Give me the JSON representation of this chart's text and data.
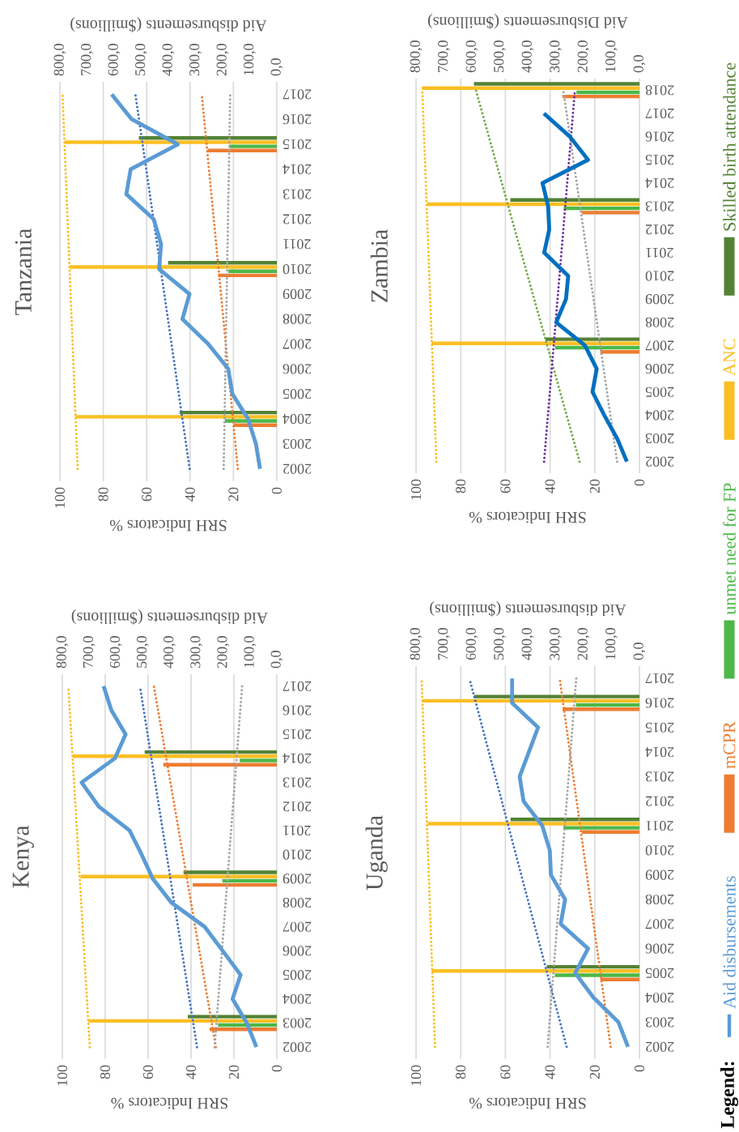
{
  "chart_data": [
    {
      "type": "bar",
      "orientation": "horizontal",
      "title": "Kenya",
      "xlabel": "SRH Indicators %",
      "x2label": "Aid disbursements ($millions)",
      "legend_title": "Legend:",
      "legend": "right",
      "grid": "x",
      "x": [
        2002,
        2003,
        2004,
        2005,
        2006,
        2007,
        2008,
        2009,
        2010,
        2011,
        2012,
        2013,
        2014,
        2015,
        2016,
        2017
      ],
      "ylim": [
        2001.5,
        2017.5
      ],
      "yticks": [
        2002,
        2003,
        2004,
        2005,
        2006,
        2007,
        2008,
        2009,
        2010,
        2011,
        2012,
        2013,
        2014,
        2015,
        2016,
        2017
      ],
      "xlim": [
        100,
        0
      ],
      "xticks": [
        0,
        20,
        40,
        60,
        80,
        100
      ],
      "x2lim": [
        800,
        0
      ],
      "x2ticks": [
        {
          "value": 0,
          "label": "0,0"
        },
        {
          "value": 100,
          "label": "100,0"
        },
        {
          "value": 200,
          "label": "200,0"
        },
        {
          "value": 300,
          "label": "300,0"
        },
        {
          "value": 400,
          "label": "400,0"
        },
        {
          "value": 500,
          "label": "500,0"
        },
        {
          "value": 600,
          "label": "600,0"
        },
        {
          "value": 700,
          "label": "700,0"
        },
        {
          "value": 800,
          "label": "800,0"
        }
      ],
      "series": [
        {
          "name": "Aid disbursements",
          "type": "line",
          "axis": "x2",
          "color": "#5b9bd5",
          "line_style": "solid",
          "values": [
            76,
            112,
            165,
            135,
            202,
            269,
            393,
            463,
            504,
            549,
            664,
            728,
            604,
            564,
            617,
            646
          ]
        },
        {
          "name": "mCPR",
          "color": "#ed7d31",
          "values": [
            null,
            31.3,
            null,
            null,
            null,
            null,
            null,
            39.2,
            null,
            null,
            null,
            null,
            52.9,
            null,
            null,
            null
          ]
        },
        {
          "name": "unmet need for FP",
          "color": "#4cb848",
          "values": [
            null,
            27.4,
            null,
            null,
            null,
            null,
            null,
            25.4,
            null,
            null,
            null,
            null,
            17.3,
            null,
            null,
            null
          ]
        },
        {
          "name": "ANC",
          "color": "#fbbf24",
          "values": [
            null,
            87.8,
            null,
            null,
            null,
            null,
            null,
            91.5,
            null,
            null,
            null,
            null,
            95.2,
            null,
            null,
            null
          ]
        },
        {
          "name": "Skilled birth attendance",
          "color": "#548235",
          "values": [
            null,
            41.5,
            null,
            null,
            null,
            null,
            null,
            43.5,
            null,
            null,
            null,
            null,
            61.6,
            null,
            null,
            null
          ]
        },
        {
          "type": "line",
          "color": "#fbbf24",
          "line_style": "dotted",
          "x": [
            2002,
            2017
          ],
          "values": [
            87.2,
            97.2
          ]
        },
        {
          "type": "line",
          "color": "#4472c4",
          "line_style": "dotted",
          "x": [
            2002,
            2017
          ],
          "values": [
            37.2,
            63.8
          ]
        },
        {
          "type": "line",
          "color": "#ed7d31",
          "line_style": "dotted",
          "x": [
            2002,
            2017
          ],
          "values": [
            28.4,
            57.3
          ]
        },
        {
          "type": "line",
          "color": "#a5a5a5",
          "line_style": "dotted",
          "x": [
            2002,
            2017
          ],
          "values": [
            29.0,
            16.2
          ]
        }
      ]
    },
    {
      "type": "bar",
      "orientation": "horizontal",
      "title": "Tanzania",
      "xlabel": "SRH Indicators %",
      "x2label": "Aid disbursements ($millions)",
      "grid": "x",
      "x": [
        2002,
        2003,
        2004,
        2005,
        2006,
        2007,
        2008,
        2009,
        2010,
        2011,
        2012,
        2013,
        2014,
        2015,
        2016,
        2017
      ],
      "ylim": [
        2001.5,
        2017.5
      ],
      "yticks": [
        2002,
        2003,
        2004,
        2005,
        2006,
        2007,
        2008,
        2009,
        2010,
        2011,
        2012,
        2013,
        2014,
        2015,
        2016,
        2017
      ],
      "xlim": [
        100,
        0
      ],
      "xticks": [
        0,
        20,
        40,
        60,
        80,
        100
      ],
      "x2lim": [
        800,
        0
      ],
      "x2ticks": [
        {
          "value": 0,
          "label": "0,0"
        },
        {
          "value": 100,
          "label": "100,0"
        },
        {
          "value": 200,
          "label": "200,0"
        },
        {
          "value": 300,
          "label": "300,0"
        },
        {
          "value": 400,
          "label": "400,0"
        },
        {
          "value": 500,
          "label": "500,0"
        },
        {
          "value": 600,
          "label": "600,0"
        },
        {
          "value": 700,
          "label": "700,0"
        },
        {
          "value": 800,
          "label": "800,0"
        }
      ],
      "series": [
        {
          "type": "line",
          "axis": "x2",
          "color": "#5b9bd5",
          "line_style": "solid",
          "values": [
            62,
            77,
            106,
            164,
            179,
            253,
            348,
            322,
            434,
            427,
            454,
            555,
            539,
            365,
            535,
            609
          ]
        },
        {
          "color": "#ed7d31",
          "values": [
            null,
            null,
            19.9,
            null,
            null,
            null,
            null,
            null,
            27.0,
            null,
            null,
            null,
            null,
            31.9,
            null,
            null
          ]
        },
        {
          "color": "#4cb848",
          "values": [
            null,
            null,
            23.9,
            null,
            null,
            null,
            null,
            null,
            22.3,
            null,
            null,
            null,
            null,
            21.9,
            null,
            null
          ]
        },
        {
          "color": "#fbbf24",
          "values": [
            null,
            null,
            92.8,
            null,
            null,
            null,
            null,
            null,
            95.5,
            null,
            null,
            null,
            null,
            97.7,
            null,
            null
          ]
        },
        {
          "color": "#548235",
          "values": [
            null,
            null,
            44.8,
            null,
            null,
            null,
            null,
            null,
            50.1,
            null,
            null,
            null,
            null,
            63.6,
            null,
            null
          ]
        },
        {
          "type": "line",
          "color": "#fbbf24",
          "line_style": "dotted",
          "x": [
            2002,
            2017
          ],
          "values": [
            91.8,
            98.8
          ]
        },
        {
          "type": "line",
          "color": "#4472c4",
          "line_style": "dotted",
          "x": [
            2002,
            2017
          ],
          "values": [
            40.2,
            65.2
          ]
        },
        {
          "type": "line",
          "color": "#ed7d31",
          "line_style": "dotted",
          "x": [
            2002,
            2017
          ],
          "values": [
            18.0,
            34.6
          ]
        },
        {
          "type": "line",
          "color": "#a5a5a5",
          "line_style": "dotted",
          "x": [
            2002,
            2017
          ],
          "values": [
            24.5,
            21.5
          ]
        }
      ]
    },
    {
      "type": "bar",
      "orientation": "horizontal",
      "title": "Uganda",
      "xlabel": "SRH Indicators %",
      "x2label": "Aid disbursements ($millions)",
      "grid": "x",
      "x": [
        2002,
        2003,
        2004,
        2005,
        2006,
        2007,
        2008,
        2009,
        2010,
        2011,
        2012,
        2013,
        2014,
        2015,
        2016,
        2017
      ],
      "ylim": [
        2001.5,
        2017.5
      ],
      "yticks": [
        2002,
        2003,
        2004,
        2005,
        2006,
        2007,
        2008,
        2009,
        2010,
        2011,
        2012,
        2013,
        2014,
        2015,
        2016,
        2017
      ],
      "xlim": [
        100,
        0
      ],
      "xticks": [
        0,
        20,
        40,
        60,
        80,
        100
      ],
      "x2lim": [
        800,
        0
      ],
      "x2ticks": [
        {
          "value": 0,
          "label": "0,0"
        },
        {
          "value": 100,
          "label": "100,0"
        },
        {
          "value": 200,
          "label": "200,0"
        },
        {
          "value": 300,
          "label": "300,0"
        },
        {
          "value": 400,
          "label": "400,0"
        },
        {
          "value": 500,
          "label": "500,0"
        },
        {
          "value": 600,
          "label": "600,0"
        },
        {
          "value": 700,
          "label": "700,0"
        },
        {
          "value": 800,
          "label": "800,0"
        }
      ],
      "series": [
        {
          "type": "line",
          "axis": "x2",
          "color": "#5b9bd5",
          "line_style": "solid",
          "values": [
            41,
            75,
            164,
            230,
            184,
            282,
            266,
            317,
            321,
            348,
            415,
            429,
            396,
            363,
            456,
            456
          ]
        },
        {
          "color": "#ed7d31",
          "values": [
            null,
            null,
            null,
            17.5,
            null,
            null,
            null,
            null,
            null,
            25.8,
            null,
            null,
            null,
            null,
            34.4,
            null
          ]
        },
        {
          "color": "#4cb848",
          "values": [
            null,
            null,
            null,
            37.9,
            null,
            null,
            null,
            null,
            null,
            34.1,
            null,
            null,
            null,
            null,
            28.4,
            null
          ]
        },
        {
          "color": "#fbbf24",
          "values": [
            null,
            null,
            null,
            93.0,
            null,
            null,
            null,
            null,
            null,
            94.8,
            null,
            null,
            null,
            null,
            97.2,
            null
          ]
        },
        {
          "color": "#548235",
          "values": [
            null,
            null,
            null,
            41.5,
            null,
            null,
            null,
            null,
            null,
            57.7,
            null,
            null,
            null,
            null,
            74.0,
            null
          ]
        },
        {
          "type": "line",
          "color": "#fbbf24",
          "line_style": "dotted",
          "x": [
            2002,
            2017
          ],
          "values": [
            91.5,
            97.5
          ]
        },
        {
          "type": "line",
          "color": "#4472c4",
          "line_style": "dotted",
          "x": [
            2002,
            2017
          ],
          "values": [
            32.6,
            76.1
          ]
        },
        {
          "type": "line",
          "color": "#ed7d31",
          "line_style": "dotted",
          "x": [
            2002,
            2017
          ],
          "values": [
            12.9,
            35.7
          ]
        },
        {
          "type": "line",
          "color": "#a5a5a5",
          "line_style": "dotted",
          "x": [
            2002,
            2017
          ],
          "values": [
            41.1,
            28.3
          ]
        }
      ]
    },
    {
      "type": "bar",
      "orientation": "horizontal",
      "title": "Zambia",
      "xlabel": "SRH Indicators %",
      "x2label": "Aid Disbursements ($millions)",
      "grid": "x",
      "x": [
        2002,
        2003,
        2004,
        2005,
        2006,
        2007,
        2008,
        2009,
        2010,
        2011,
        2012,
        2013,
        2014,
        2015,
        2016,
        2017,
        2018
      ],
      "ylim": [
        2001.5,
        2018.5
      ],
      "yticks": [
        2002,
        2003,
        2004,
        2005,
        2006,
        2007,
        2008,
        2009,
        2010,
        2011,
        2012,
        2013,
        2014,
        2015,
        2016,
        2017,
        2018
      ],
      "xlim": [
        100,
        0
      ],
      "xticks": [
        0,
        20,
        40,
        60,
        80,
        100
      ],
      "x2lim": [
        800,
        0
      ],
      "x2ticks": [
        {
          "value": 0,
          "label": "0,0"
        },
        {
          "value": 100,
          "label": "100,0"
        },
        {
          "value": 200,
          "label": "200,0"
        },
        {
          "value": 300,
          "label": "300,0"
        },
        {
          "value": 400,
          "label": "400,0"
        },
        {
          "value": 500,
          "label": "500,0"
        },
        {
          "value": 600,
          "label": "600,0"
        },
        {
          "value": 700,
          "label": "700,0"
        },
        {
          "value": 800,
          "label": "800,0"
        }
      ],
      "series": [
        {
          "type": "line",
          "axis": "x2",
          "color": "#0070c0",
          "line_style": "solid",
          "values": [
            45,
            80,
            126,
            168,
            153,
            195,
            298,
            263,
            255,
            341,
            323,
            327,
            347,
            184,
            249,
            342,
            null
          ]
        },
        {
          "color": "#ed7d31",
          "values": [
            null,
            null,
            null,
            null,
            null,
            17.5,
            null,
            null,
            null,
            null,
            null,
            25.8,
            null,
            null,
            null,
            null,
            34.5
          ]
        },
        {
          "color": "#4cb848",
          "values": [
            null,
            null,
            null,
            null,
            null,
            37.8,
            null,
            null,
            null,
            null,
            null,
            33.9,
            null,
            null,
            null,
            null,
            28.2
          ]
        },
        {
          "color": "#fbbf24",
          "values": [
            null,
            null,
            null,
            null,
            null,
            93.0,
            null,
            null,
            null,
            null,
            null,
            95.0,
            null,
            null,
            null,
            null,
            97.4
          ]
        },
        {
          "color": "#548235",
          "values": [
            null,
            null,
            null,
            null,
            null,
            42.1,
            null,
            null,
            null,
            null,
            null,
            57.8,
            null,
            null,
            null,
            null,
            74.1
          ]
        },
        {
          "type": "line",
          "color": "#fbbf24",
          "line_style": "dotted",
          "x": [
            2002,
            2018
          ],
          "values": [
            90.9,
            97.2
          ]
        },
        {
          "type": "line",
          "color": "#70ad47",
          "line_style": "dotted",
          "x": [
            2002,
            2018
          ],
          "values": [
            26.8,
            73.2
          ]
        },
        {
          "type": "line",
          "color": "#7030a0",
          "line_style": "dotted",
          "x": [
            2002,
            2018
          ],
          "values": [
            42.7,
            28.9
          ]
        },
        {
          "type": "line",
          "color": "#a5a5a5",
          "line_style": "dotted",
          "x": [
            2002,
            2018
          ],
          "values": [
            10.0,
            34.1
          ]
        }
      ]
    }
  ]
}
